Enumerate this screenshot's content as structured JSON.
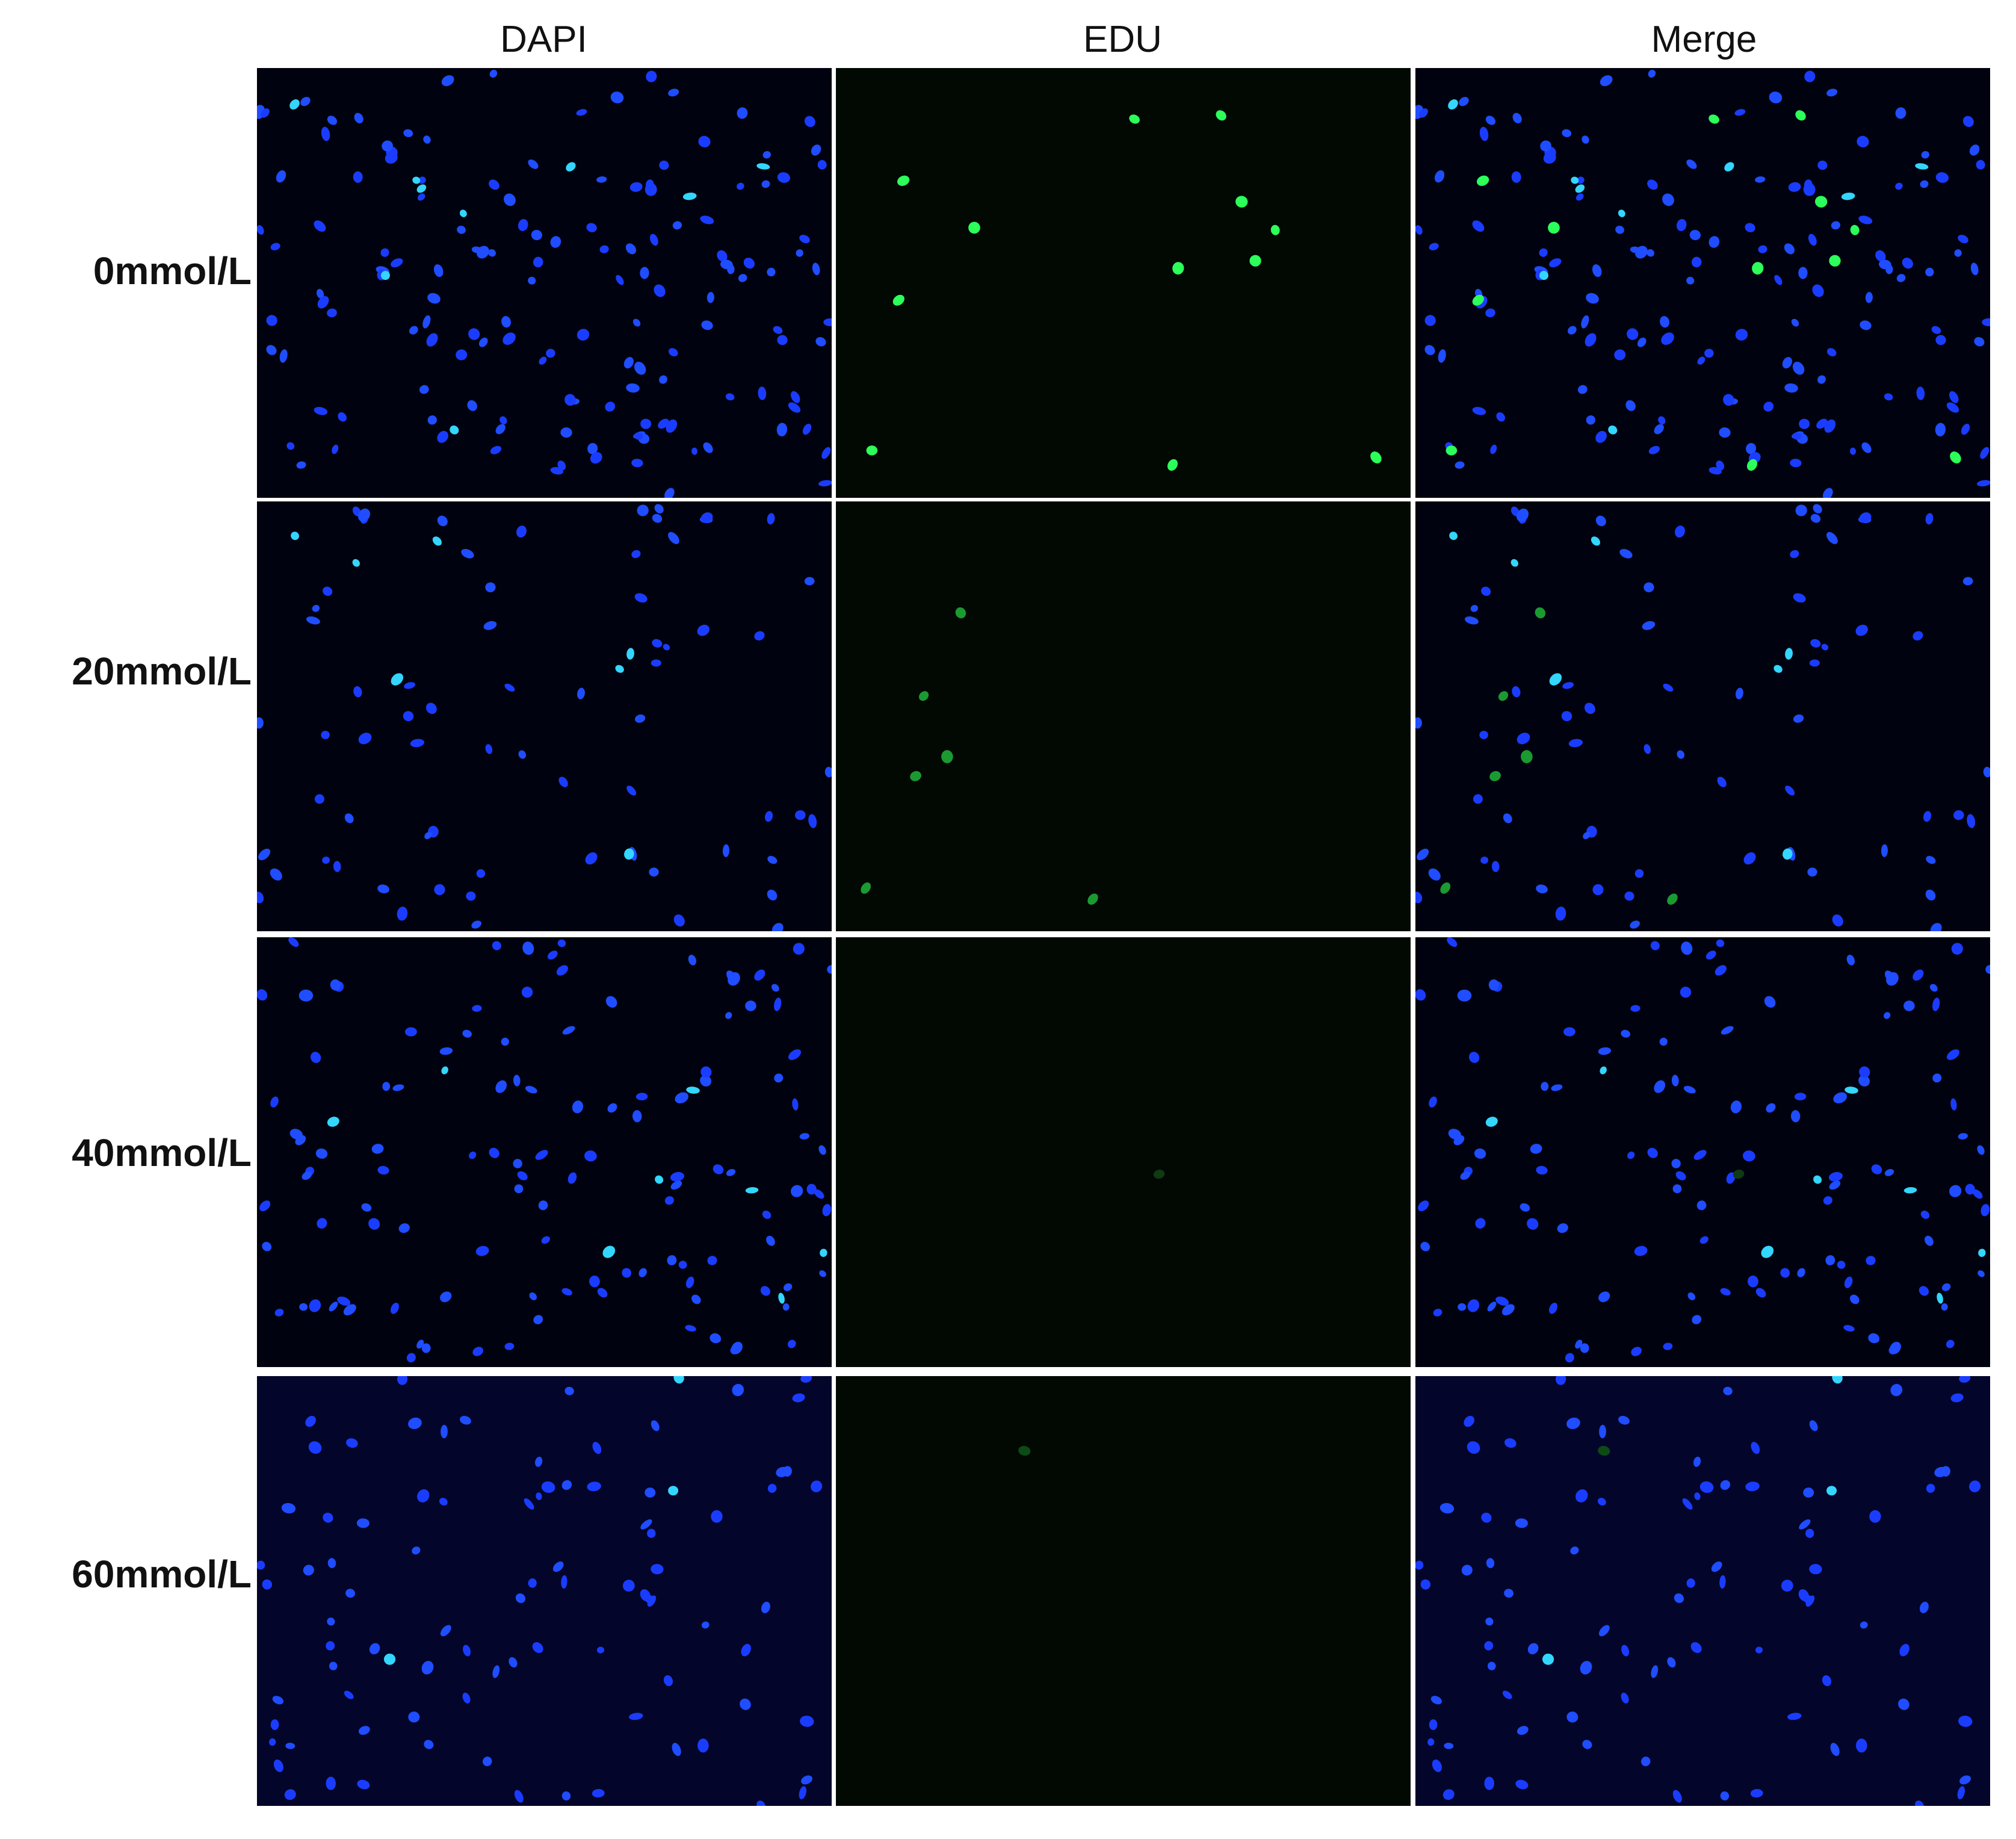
{
  "columns": [
    "DAPI",
    "EDU",
    "Merge"
  ],
  "rows": [
    "0mmol/L",
    "20mmol/L",
    "40mmol/L",
    "60mmol/L"
  ]
}
